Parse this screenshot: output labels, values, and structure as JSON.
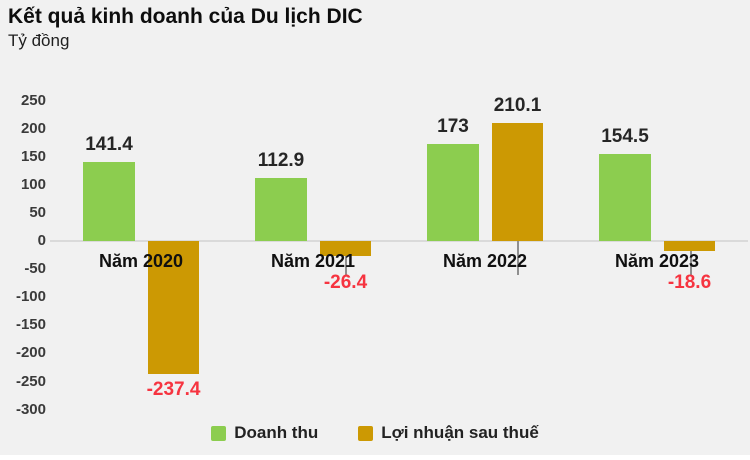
{
  "header": {
    "title": "Kết quả kinh doanh của Du lịch DIC",
    "subtitle": "Tỷ đồng"
  },
  "chart_data": {
    "type": "bar",
    "title": "Kết quả kinh doanh của Du lịch DIC",
    "unit_label": "Tỷ đồng",
    "categories": [
      "Năm 2020",
      "Năm 2021",
      "Năm 2022",
      "Năm 2023"
    ],
    "series": [
      {
        "name": "Doanh thu",
        "color": "#8CCD4F",
        "values": [
          141.4,
          112.9,
          173,
          154.5
        ]
      },
      {
        "name": "Lợi nhuận sau thuế",
        "color": "#CC9903",
        "values": [
          -237.4,
          -26.4,
          210.1,
          -18.6
        ]
      }
    ],
    "y_ticks": [
      250,
      200,
      150,
      100,
      50,
      0,
      -50,
      -100,
      -150,
      -200,
      -250,
      -300
    ],
    "ylim": [
      -300,
      250
    ],
    "grid": false,
    "legend_position": "bottom",
    "colors": {
      "background": "#F1F1F1",
      "axis_line": "#dadada",
      "positive_label": "#262626",
      "negative_label": "#F63440",
      "tick_label": "#3a3a3a"
    }
  }
}
